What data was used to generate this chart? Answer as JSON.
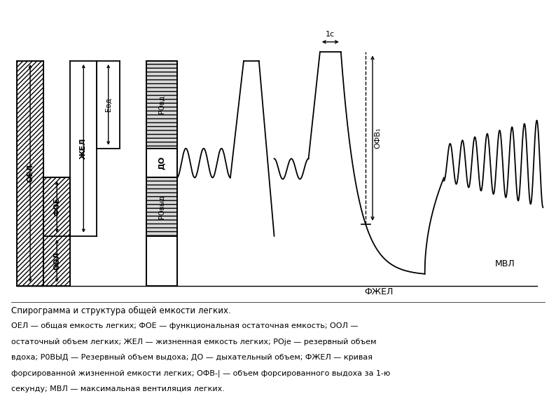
{
  "bg_color": "#ffffff",
  "line_color": "#000000",
  "fig_width": 7.94,
  "fig_height": 5.95,
  "caption_line1": "Спирограмма и структура общей емкости легких.",
  "caption_line2": "ОЕЛ — общая емкость легких; ФОЕ — функциональная остаточная емкость; ООЛ —",
  "caption_line3": "остаточный объем легких; ЖЕЛ — жизненная емкость легких; РОje — резервный объем",
  "caption_line4": "вдоха; Р0ВЫД — Резервный объем выдоха; ДО — дыхательный объем; ФЖЕЛ — кривая",
  "caption_line5": "форсированной жизненной емкости легких; ОФВ-| — объем форсированного выдоха за 1-ю",
  "caption_line6": "секунду; МВЛ — максимальная вентиляция легких.",
  "label_OEL": "ОЕЛ",
  "label_FOE": "ФОЕ",
  "label_OOL": "ООЛ",
  "label_JEL": "ЖЕЛ",
  "label_EVD": "Евд",
  "label_DO": "ДО",
  "label_ROVD": "РОвд",
  "label_ROVYD": "РОвыд",
  "label_FZHEL": "ФЖЕЛ",
  "label_OFV": "ОФВ₁",
  "label_MVL": "МВЛ",
  "label_1c": "1с"
}
